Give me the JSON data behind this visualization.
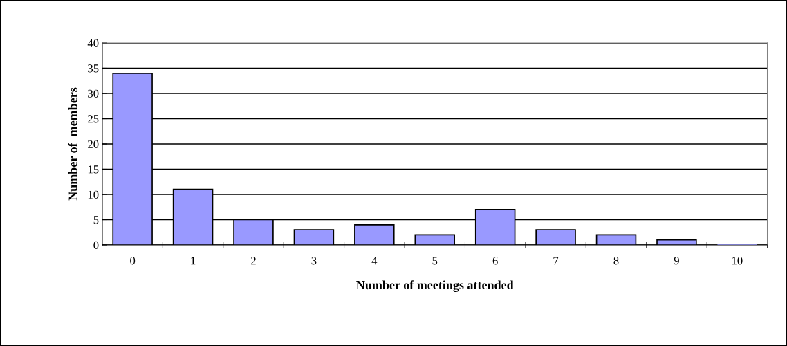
{
  "chart_data": {
    "type": "bar",
    "xlabel": "Number of meetings attended",
    "ylabel": "Number of  members",
    "categories": [
      "0",
      "1",
      "2",
      "3",
      "4",
      "5",
      "6",
      "7",
      "8",
      "9",
      "10"
    ],
    "values": [
      34,
      11,
      5,
      3,
      4,
      2,
      7,
      3,
      2,
      1,
      0
    ],
    "color": "#9999ff",
    "ylim": [
      0,
      40
    ],
    "yticks": [
      0,
      5,
      10,
      15,
      20,
      25,
      30,
      35,
      40
    ],
    "grid": "y"
  }
}
